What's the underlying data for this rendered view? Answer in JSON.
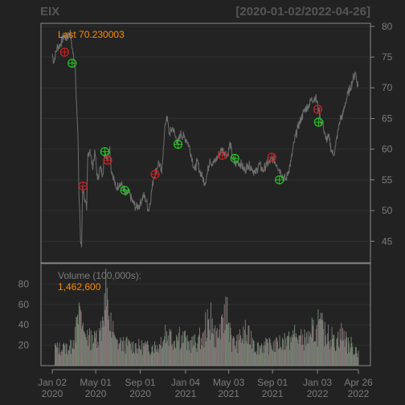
{
  "header": {
    "symbol": "EIX",
    "date_range": "[2020-01-02/2022-04-26]"
  },
  "colors": {
    "background": "#222222",
    "panel": "#232323",
    "frame": "#8a8a8a",
    "grid": "#2f2f2f",
    "price_line": "#6e6e6e",
    "annotation": "#ff8c00",
    "text_muted": "#7c7c7c",
    "buy_marker": "#22cc22",
    "sell_marker": "#cc2222",
    "volume_bar": "#7a7a7a"
  },
  "price_panel": {
    "last_label": "Last 70.230003",
    "yaxis": {
      "ticks": [
        45,
        50,
        55,
        60,
        65,
        70,
        75,
        80
      ],
      "range": [
        41.5,
        80.5
      ]
    }
  },
  "volume_panel": {
    "title": "Volume (100,000s):",
    "value": "1,462,600",
    "yaxis": {
      "ticks": [
        20,
        40,
        60,
        80
      ],
      "range": [
        0,
        100
      ]
    }
  },
  "xaxis": {
    "ticks": [
      {
        "line1": "Jan 02",
        "line2": "2020",
        "date": "2020-01-02"
      },
      {
        "line1": "May 01",
        "line2": "2020",
        "date": "2020-05-01"
      },
      {
        "line1": "Sep 01",
        "line2": "2020",
        "date": "2020-09-01"
      },
      {
        "line1": "Jan 04",
        "line2": "2021",
        "date": "2021-01-04"
      },
      {
        "line1": "May 03",
        "line2": "2021",
        "date": "2021-05-03"
      },
      {
        "line1": "Sep 01",
        "line2": "2021",
        "date": "2021-09-01"
      },
      {
        "line1": "Jan 03",
        "line2": "2022",
        "date": "2022-01-03"
      },
      {
        "line1": "Apr 26",
        "line2": "2022",
        "date": "2022-04-26"
      }
    ]
  },
  "chart_data": {
    "type": "line",
    "title": "EIX",
    "date_range": "[2020-01-02/2022-04-26]",
    "x_range": [
      "2020-01-02",
      "2022-04-26"
    ],
    "price_series": {
      "points": [
        [
          "2020-01-02",
          75.5
        ],
        [
          "2020-01-06",
          74.2
        ],
        [
          "2020-01-15",
          76.5
        ],
        [
          "2020-01-24",
          77.0
        ],
        [
          "2020-02-03",
          78.5
        ],
        [
          "2020-02-12",
          78.0
        ],
        [
          "2020-02-20",
          79.2
        ],
        [
          "2020-02-26",
          76.5
        ],
        [
          "2020-03-02",
          74.5
        ],
        [
          "2020-03-06",
          73.0
        ],
        [
          "2020-03-10",
          66.0
        ],
        [
          "2020-03-13",
          62.0
        ],
        [
          "2020-03-16",
          52.0
        ],
        [
          "2020-03-18",
          50.0
        ],
        [
          "2020-03-20",
          45.0
        ],
        [
          "2020-03-23",
          44.0
        ],
        [
          "2020-03-26",
          54.0
        ],
        [
          "2020-03-31",
          52.0
        ],
        [
          "2020-04-06",
          50.0
        ],
        [
          "2020-04-09",
          59.0
        ],
        [
          "2020-04-15",
          60.0
        ],
        [
          "2020-04-22",
          57.0
        ],
        [
          "2020-04-29",
          59.5
        ],
        [
          "2020-05-06",
          55.0
        ],
        [
          "2020-05-13",
          57.0
        ],
        [
          "2020-05-20",
          56.0
        ],
        [
          "2020-05-27",
          59.5
        ],
        [
          "2020-06-03",
          58.5
        ],
        [
          "2020-06-09",
          60.5
        ],
        [
          "2020-06-12",
          57.0
        ],
        [
          "2020-06-19",
          55.5
        ],
        [
          "2020-06-26",
          53.5
        ],
        [
          "2020-07-06",
          54.5
        ],
        [
          "2020-07-14",
          54.0
        ],
        [
          "2020-07-22",
          52.5
        ],
        [
          "2020-07-31",
          53.0
        ],
        [
          "2020-08-10",
          51.5
        ],
        [
          "2020-08-20",
          50.5
        ],
        [
          "2020-08-31",
          51.0
        ],
        [
          "2020-09-10",
          52.5
        ],
        [
          "2020-09-18",
          51.5
        ],
        [
          "2020-09-24",
          50.0
        ],
        [
          "2020-10-01",
          52.5
        ],
        [
          "2020-10-08",
          55.5
        ],
        [
          "2020-10-15",
          56.5
        ],
        [
          "2020-10-22",
          58.0
        ],
        [
          "2020-10-30",
          56.0
        ],
        [
          "2020-11-04",
          60.5
        ],
        [
          "2020-11-09",
          64.0
        ],
        [
          "2020-11-13",
          65.5
        ],
        [
          "2020-11-20",
          62.5
        ],
        [
          "2020-11-30",
          63.5
        ],
        [
          "2020-12-07",
          62.0
        ],
        [
          "2020-12-14",
          61.0
        ],
        [
          "2020-12-21",
          62.5
        ],
        [
          "2020-12-31",
          62.0
        ],
        [
          "2021-01-07",
          61.5
        ],
        [
          "2021-01-14",
          60.5
        ],
        [
          "2021-01-22",
          58.5
        ],
        [
          "2021-01-29",
          56.5
        ],
        [
          "2021-02-05",
          58.0
        ],
        [
          "2021-02-12",
          56.5
        ],
        [
          "2021-02-19",
          55.5
        ],
        [
          "2021-02-26",
          54.5
        ],
        [
          "2021-03-05",
          56.0
        ],
        [
          "2021-03-12",
          58.5
        ],
        [
          "2021-03-19",
          57.5
        ],
        [
          "2021-03-26",
          58.0
        ],
        [
          "2021-04-05",
          59.0
        ],
        [
          "2021-04-14",
          60.0
        ],
        [
          "2021-04-23",
          59.5
        ],
        [
          "2021-04-30",
          59.0
        ],
        [
          "2021-05-07",
          61.0
        ],
        [
          "2021-05-14",
          58.5
        ],
        [
          "2021-05-21",
          57.5
        ],
        [
          "2021-05-28",
          58.0
        ],
        [
          "2021-06-07",
          57.5
        ],
        [
          "2021-06-16",
          56.5
        ],
        [
          "2021-06-25",
          57.5
        ],
        [
          "2021-07-06",
          57.0
        ],
        [
          "2021-07-15",
          56.0
        ],
        [
          "2021-07-26",
          57.5
        ],
        [
          "2021-08-05",
          56.5
        ],
        [
          "2021-08-16",
          57.5
        ],
        [
          "2021-08-26",
          58.0
        ],
        [
          "2021-09-03",
          58.5
        ],
        [
          "2021-09-13",
          57.5
        ],
        [
          "2021-09-22",
          56.5
        ],
        [
          "2021-09-30",
          55.5
        ],
        [
          "2021-10-08",
          55.0
        ],
        [
          "2021-10-15",
          56.5
        ],
        [
          "2021-10-22",
          58.0
        ],
        [
          "2021-11-01",
          61.5
        ],
        [
          "2021-11-10",
          63.5
        ],
        [
          "2021-11-19",
          65.0
        ],
        [
          "2021-11-30",
          66.5
        ],
        [
          "2021-12-08",
          67.0
        ],
        [
          "2021-12-17",
          68.0
        ],
        [
          "2021-12-29",
          68.5
        ],
        [
          "2022-01-04",
          67.0
        ],
        [
          "2022-01-07",
          66.5
        ],
        [
          "2022-01-12",
          64.5
        ],
        [
          "2022-01-19",
          64.0
        ],
        [
          "2022-01-26",
          61.5
        ],
        [
          "2022-02-03",
          62.0
        ],
        [
          "2022-02-10",
          60.0
        ],
        [
          "2022-02-16",
          59.0
        ],
        [
          "2022-02-22",
          60.5
        ],
        [
          "2022-03-01",
          63.0
        ],
        [
          "2022-03-07",
          65.0
        ],
        [
          "2022-03-14",
          65.5
        ],
        [
          "2022-03-21",
          67.5
        ],
        [
          "2022-03-28",
          69.0
        ],
        [
          "2022-04-04",
          70.0
        ],
        [
          "2022-04-11",
          71.5
        ],
        [
          "2022-04-18",
          72.5
        ],
        [
          "2022-04-22",
          71.0
        ],
        [
          "2022-04-26",
          70.23
        ]
      ]
    },
    "volume_series": {
      "unit": "100,000s",
      "points": [
        [
          "2020-01-10",
          22
        ],
        [
          "2020-02-05",
          20
        ],
        [
          "2020-02-25",
          25
        ],
        [
          "2020-03-05",
          38
        ],
        [
          "2020-03-12",
          50
        ],
        [
          "2020-03-16",
          62
        ],
        [
          "2020-03-20",
          55
        ],
        [
          "2020-03-27",
          42
        ],
        [
          "2020-04-08",
          35
        ],
        [
          "2020-04-22",
          30
        ],
        [
          "2020-05-01",
          32
        ],
        [
          "2020-05-15",
          44
        ],
        [
          "2020-05-20",
          48
        ],
        [
          "2020-05-29",
          95
        ],
        [
          "2020-06-05",
          45
        ],
        [
          "2020-06-12",
          52
        ],
        [
          "2020-06-22",
          30
        ],
        [
          "2020-07-10",
          25
        ],
        [
          "2020-07-30",
          26
        ],
        [
          "2020-08-20",
          22
        ],
        [
          "2020-09-15",
          24
        ],
        [
          "2020-10-05",
          20
        ],
        [
          "2020-10-28",
          28
        ],
        [
          "2020-11-09",
          40
        ],
        [
          "2020-11-25",
          35
        ],
        [
          "2020-12-10",
          30
        ],
        [
          "2020-12-18",
          38
        ],
        [
          "2021-01-05",
          28
        ],
        [
          "2021-01-20",
          25
        ],
        [
          "2021-02-10",
          30
        ],
        [
          "2021-02-26",
          35
        ],
        [
          "2021-03-15",
          62
        ],
        [
          "2021-03-19",
          46
        ],
        [
          "2021-04-05",
          28
        ],
        [
          "2021-04-21",
          60
        ],
        [
          "2021-04-29",
          67
        ],
        [
          "2021-05-10",
          30
        ],
        [
          "2021-06-01",
          25
        ],
        [
          "2021-06-18",
          45
        ],
        [
          "2021-07-12",
          24
        ],
        [
          "2021-08-02",
          22
        ],
        [
          "2021-08-25",
          26
        ],
        [
          "2021-09-15",
          24
        ],
        [
          "2021-10-04",
          32
        ],
        [
          "2021-10-20",
          28
        ],
        [
          "2021-11-01",
          40
        ],
        [
          "2021-11-15",
          30
        ],
        [
          "2021-12-08",
          34
        ],
        [
          "2021-12-17",
          28
        ],
        [
          "2022-01-05",
          55
        ],
        [
          "2022-01-20",
          36
        ],
        [
          "2022-02-02",
          40
        ],
        [
          "2022-02-16",
          30
        ],
        [
          "2022-02-25",
          26
        ],
        [
          "2022-03-10",
          42
        ],
        [
          "2022-03-25",
          28
        ],
        [
          "2022-04-08",
          22
        ],
        [
          "2022-04-20",
          18
        ],
        [
          "2022-04-26",
          14.626
        ]
      ]
    },
    "markers": [
      {
        "side": "sell",
        "date": "2020-02-05",
        "price": 75.8
      },
      {
        "side": "buy",
        "date": "2020-02-26",
        "price": 74.0
      },
      {
        "side": "sell",
        "date": "2020-03-27",
        "price": 54.0
      },
      {
        "side": "buy",
        "date": "2020-05-26",
        "price": 59.6
      },
      {
        "side": "sell",
        "date": "2020-06-03",
        "price": 58.2
      },
      {
        "side": "buy",
        "date": "2020-07-20",
        "price": 53.3
      },
      {
        "side": "sell",
        "date": "2020-10-12",
        "price": 55.9
      },
      {
        "side": "buy",
        "date": "2020-12-14",
        "price": 60.8
      },
      {
        "side": "sell",
        "date": "2021-04-15",
        "price": 59.0
      },
      {
        "side": "buy",
        "date": "2021-05-20",
        "price": 58.5
      },
      {
        "side": "sell",
        "date": "2021-08-30",
        "price": 58.7
      },
      {
        "side": "buy",
        "date": "2021-09-20",
        "price": 55.0
      },
      {
        "side": "sell",
        "date": "2022-01-04",
        "price": 66.5
      },
      {
        "side": "buy",
        "date": "2022-01-06",
        "price": 64.4
      }
    ]
  }
}
